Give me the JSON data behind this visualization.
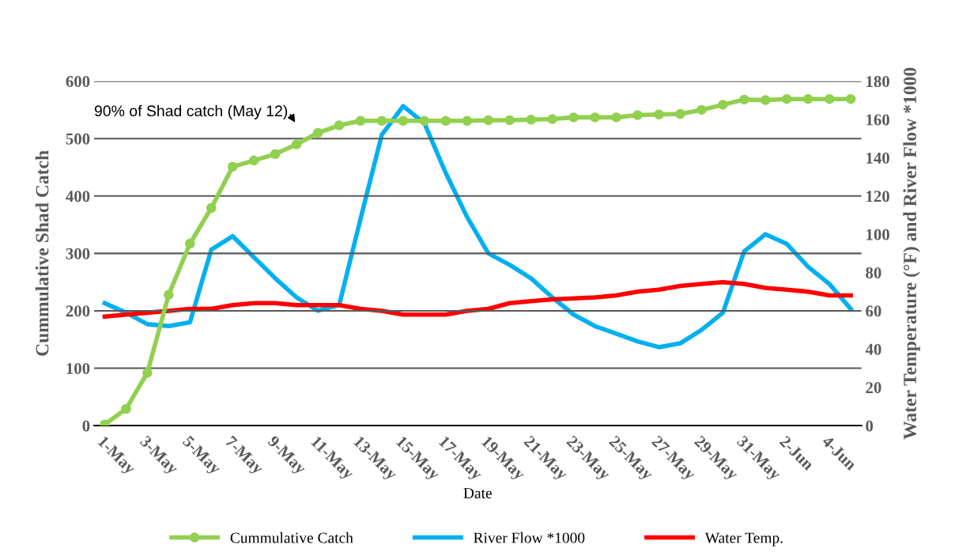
{
  "chart_data": {
    "type": "line",
    "xlabel": "Date",
    "ylabel": "Cummulative Shad Catch",
    "y2label": "Water Temperature (°F) and River Flow *1000",
    "categories": [
      "1-May",
      null,
      "3-May",
      null,
      "5-May",
      null,
      "7-May",
      null,
      "9-May",
      null,
      "11-May",
      null,
      "13-May",
      null,
      "15-May",
      null,
      "17-May",
      null,
      "19-May",
      null,
      "21-May",
      null,
      "23-May",
      null,
      "25-May",
      null,
      "27-May",
      null,
      "29-May",
      null,
      "31-May",
      null,
      "2-Jun",
      null,
      "4-Jun",
      null
    ],
    "series": [
      {
        "name": "Cummulative Catch",
        "color": "#92d050",
        "marker": "circle",
        "values": [
          2,
          29,
          92,
          228,
          317,
          379,
          451,
          462,
          473,
          490,
          510,
          523,
          531,
          531,
          531,
          531,
          531,
          531,
          532,
          532,
          533,
          534,
          537,
          537,
          537,
          541,
          542,
          543,
          550,
          559,
          568,
          567,
          569,
          569,
          569,
          569
        ]
      },
      {
        "name": "River Flow *1000",
        "color": "#00b0f0",
        "axis": "y2",
        "values": [
          64,
          59,
          53,
          52,
          54,
          92,
          99,
          88,
          77,
          67,
          60,
          63,
          108,
          152,
          167,
          158,
          132,
          109,
          90,
          84,
          77,
          67,
          58,
          52,
          48,
          44,
          41,
          43,
          50,
          59,
          91,
          100,
          95,
          83,
          74,
          61
        ]
      },
      {
        "name": "Water Temp.",
        "color": "#ff0000",
        "axis": "y2",
        "values": [
          57,
          58,
          59,
          60,
          61,
          61,
          63,
          64,
          64,
          63,
          63,
          63,
          61,
          60,
          58,
          58,
          58,
          60,
          61,
          64,
          65,
          66,
          66.5,
          67,
          68,
          70,
          71,
          73,
          74,
          75,
          74,
          72,
          71,
          70,
          68,
          68
        ]
      }
    ],
    "ylim": [
      0,
      600
    ],
    "yticks": [
      0,
      100,
      200,
      300,
      400,
      500,
      600
    ],
    "y2lim": [
      0,
      180
    ],
    "y2ticks": [
      0,
      20,
      40,
      60,
      80,
      100,
      120,
      140,
      160,
      180
    ],
    "grid": "y",
    "legend": "bottom",
    "annotations": [
      "90% of Shad catch (May 12)"
    ]
  }
}
